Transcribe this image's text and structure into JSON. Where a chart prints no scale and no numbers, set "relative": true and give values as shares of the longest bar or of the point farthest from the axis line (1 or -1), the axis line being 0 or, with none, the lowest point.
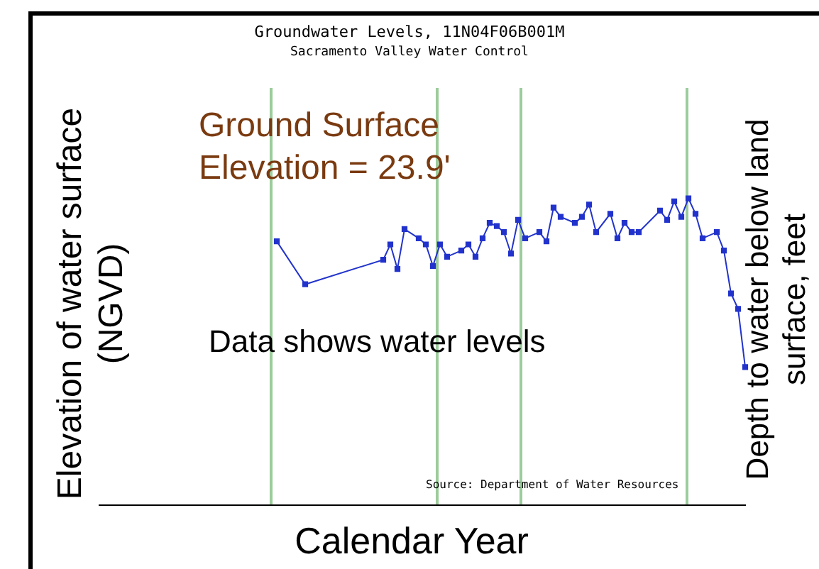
{
  "chart_data": {
    "type": "line",
    "title": "Groundwater Levels, 11N04F06B001M",
    "subtitle": "Sacramento Valley Water Control",
    "xlabel": "Calendar Year",
    "relative": true,
    "marker": "square",
    "legend": false,
    "annotations": [
      "Ground Surface Elevation = 23.9'",
      "Data shows water levels",
      "Source: Department of Water Resources",
      "Elevation of water surface (NGVD)",
      "Depth to water below land surface, feet"
    ],
    "categories": [
      null,
      null,
      null,
      null,
      null,
      null,
      null,
      null,
      null,
      null,
      null,
      null,
      null,
      null,
      null,
      null,
      null,
      null,
      null,
      null,
      null,
      null,
      null,
      null,
      null,
      null,
      null,
      null,
      null,
      null,
      null,
      null,
      null,
      null,
      null,
      null,
      null,
      null,
      null,
      null,
      null,
      null,
      null,
      null,
      null,
      null,
      null,
      null,
      null,
      null,
      null,
      null,
      null,
      null,
      null,
      null,
      null,
      null,
      null,
      null,
      null,
      null,
      null,
      null,
      null,
      null,
      null,
      null,
      null,
      null,
      null,
      null,
      null,
      null,
      null,
      null,
      null,
      null,
      null,
      null,
      null,
      null,
      null,
      null,
      null,
      null,
      null,
      null,
      null,
      null,
      null,
      null
    ],
    "series": [
      {
        "color": "#2233cc",
        "values": [
          null,
          null,
          null,
          null,
          null,
          null,
          null,
          null,
          null,
          null,
          null,
          null,
          null,
          null,
          null,
          null,
          null,
          null,
          null,
          null,
          null,
          null,
          null,
          null,
          null,
          0.86,
          null,
          null,
          null,
          0.72,
          null,
          null,
          null,
          null,
          null,
          null,
          null,
          null,
          null,
          null,
          0.8,
          0.85,
          0.77,
          0.9,
          null,
          0.87,
          0.85,
          0.78,
          0.85,
          0.81,
          null,
          0.83,
          0.85,
          0.81,
          0.87,
          0.92,
          0.91,
          0.89,
          0.82,
          0.93,
          0.87,
          null,
          0.89,
          0.86,
          0.97,
          0.94,
          null,
          0.92,
          0.94,
          0.98,
          0.89,
          null,
          0.95,
          0.87,
          0.92,
          0.89,
          0.89,
          null,
          null,
          0.96,
          0.93,
          0.99,
          0.94,
          1,
          0.95,
          0.87,
          null,
          0.89,
          0.83,
          0.69,
          0.64,
          0.45
        ]
      }
    ]
  }
}
